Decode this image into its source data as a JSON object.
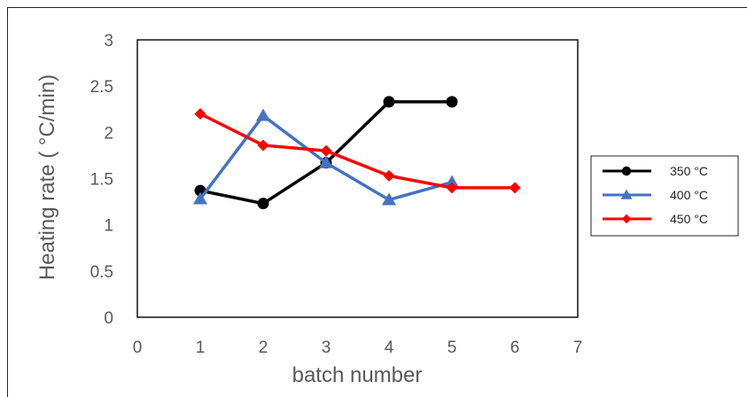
{
  "chart_data": {
    "type": "line",
    "title": "",
    "xlabel": "batch number",
    "ylabel": "Heating rate ( °C/min)",
    "xlim": [
      0,
      7
    ],
    "ylim": [
      0,
      3
    ],
    "xticks": [
      "0",
      "1",
      "2",
      "3",
      "4",
      "5",
      "6",
      "7"
    ],
    "yticks": [
      "0",
      "0.5",
      "1",
      "1.5",
      "2",
      "2.5",
      "3"
    ],
    "grid": false,
    "legend_position": "right",
    "series": [
      {
        "name": "350 °C",
        "color": "#000000",
        "marker": "circle",
        "x": [
          1,
          2,
          3,
          4,
          5
        ],
        "y": [
          1.37,
          1.23,
          1.67,
          2.33,
          2.33
        ]
      },
      {
        "name": "400 °C",
        "color": "#4472C4",
        "marker": "triangle",
        "x": [
          1,
          2,
          3,
          4,
          5
        ],
        "y": [
          1.28,
          2.18,
          1.67,
          1.27,
          1.46
        ]
      },
      {
        "name": "450 °C",
        "color": "#FF0000",
        "marker": "diamond",
        "x": [
          1,
          2,
          3,
          4,
          5,
          6
        ],
        "y": [
          2.2,
          1.86,
          1.8,
          1.53,
          1.4,
          1.4
        ]
      }
    ]
  }
}
